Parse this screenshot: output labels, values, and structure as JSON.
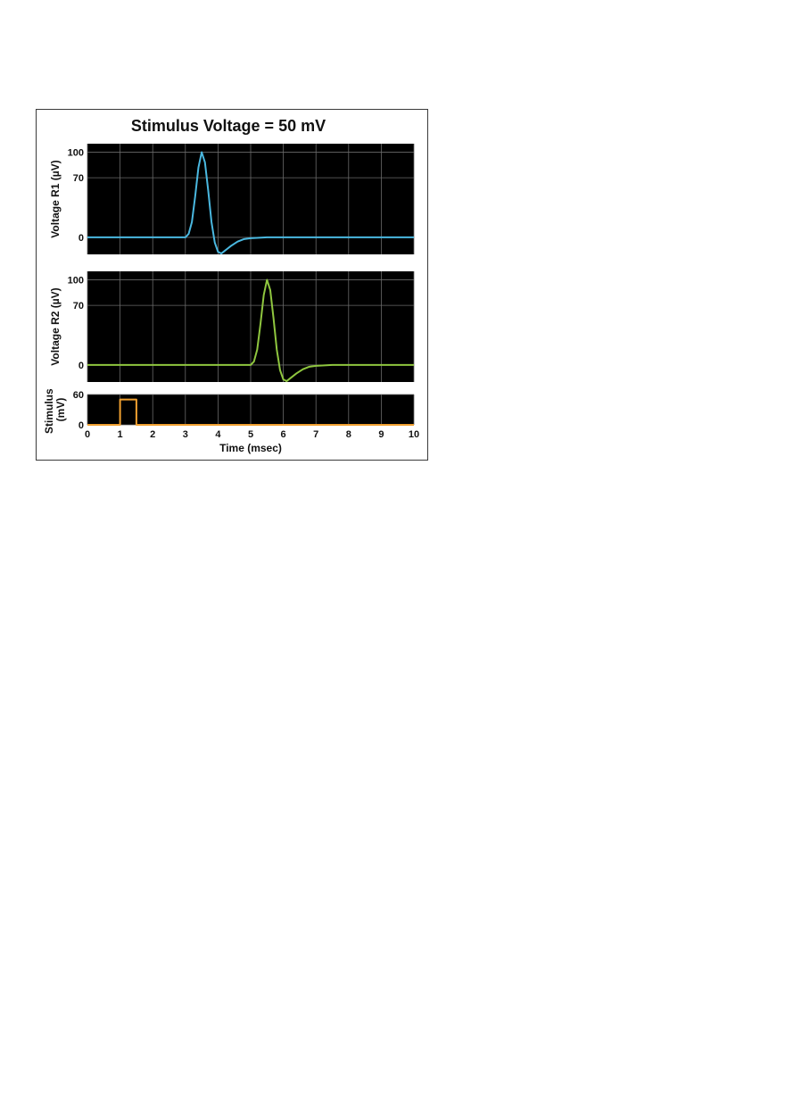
{
  "chart_data": [
    {
      "type": "line",
      "title": "Stimulus Voltage = 50 mV",
      "ylabel": "Voltage R1 (µV)",
      "xlabel": "",
      "xlim": [
        0,
        10
      ],
      "ylim": [
        -20,
        110
      ],
      "yticks": [
        0,
        70,
        100
      ],
      "grid": true,
      "background": "#000000",
      "series": [
        {
          "color": "#4ab8e0",
          "x": [
            0,
            3.0,
            3.1,
            3.2,
            3.3,
            3.4,
            3.5,
            3.6,
            3.7,
            3.8,
            3.9,
            4.0,
            4.1,
            4.2,
            4.4,
            4.6,
            4.8,
            5.0,
            5.5,
            6.0,
            10
          ],
          "y": [
            0,
            0,
            4,
            18,
            48,
            82,
            100,
            88,
            55,
            18,
            -6,
            -17,
            -19,
            -16,
            -10,
            -5,
            -2,
            -1,
            0,
            0,
            0
          ]
        }
      ]
    },
    {
      "type": "line",
      "ylabel": "Voltage R2 (µV)",
      "xlabel": "",
      "xlim": [
        0,
        10
      ],
      "ylim": [
        -20,
        110
      ],
      "yticks": [
        0,
        70,
        100
      ],
      "grid": true,
      "background": "#000000",
      "series": [
        {
          "color": "#8fc63f",
          "x": [
            0,
            5.0,
            5.1,
            5.2,
            5.3,
            5.4,
            5.5,
            5.6,
            5.7,
            5.8,
            5.9,
            6.0,
            6.1,
            6.2,
            6.4,
            6.6,
            6.8,
            7.0,
            7.5,
            8.0,
            10
          ],
          "y": [
            0,
            0,
            4,
            18,
            48,
            82,
            100,
            88,
            55,
            18,
            -6,
            -17,
            -19,
            -16,
            -10,
            -5,
            -2,
            -1,
            0,
            0,
            0
          ]
        }
      ]
    },
    {
      "type": "line",
      "ylabel": "Stimulus (mV)",
      "ylabel_lines": [
        "Stimulus",
        "(mV)"
      ],
      "xlabel": "Time (msec)",
      "xlim": [
        0,
        10
      ],
      "ylim": [
        0,
        60
      ],
      "yticks": [
        0,
        60
      ],
      "xticks": [
        0,
        1,
        2,
        3,
        4,
        5,
        6,
        7,
        8,
        9,
        10
      ],
      "grid": true,
      "background": "#000000",
      "series": [
        {
          "color": "#f0a030",
          "x": [
            0,
            1.0,
            1.0,
            1.5,
            1.5,
            10
          ],
          "y": [
            0,
            0,
            50,
            50,
            0,
            0
          ]
        }
      ]
    }
  ]
}
